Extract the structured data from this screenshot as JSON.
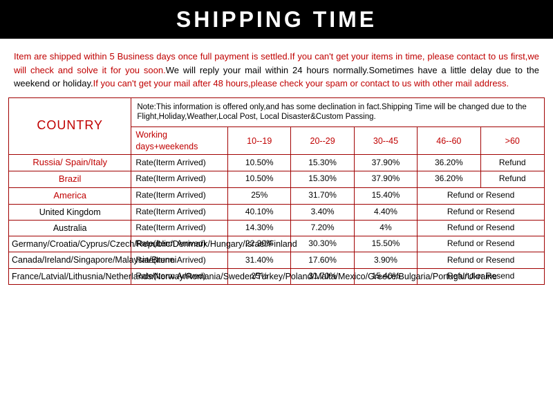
{
  "header": {
    "title": "SHIPPING  TIME"
  },
  "info": {
    "line1": "Item are shipped within 5 Business days once full payment is settled.If you can't get your items in time,",
    "line2": "please contact to us first,we will check and solve it for you soon.",
    "line3": "We will reply your mail within 24 hours normally.Sometimes have a little delay due to the weekend or holiday.",
    "line4": "If you can't get your mail after 48 hours,please check your spam or contact to us with other mail address."
  },
  "table": {
    "country_header": "COUNTRY",
    "note": "Note:This information is offered only,and has some declination in fact.Shipping Time will be changed due to the Flight,Holiday,Weather,Local Post, Local Disaster&Custom Passing.",
    "working_header": "Working days+weekends",
    "range_headers": [
      "10--19",
      "20--29",
      "30--45",
      "46--60",
      ">60"
    ],
    "rate_label": "Rate(Iterm Arrived)",
    "refund": "Refund",
    "refund_resend": "Refund or Resend",
    "col_widths": {
      "country": 165,
      "rate": 130,
      "range": 85,
      "last": 86
    },
    "rows": [
      {
        "country": "Russia/ Spain/Italy",
        "country_color": "red",
        "values": [
          "10.50%",
          "15.30%",
          "37.90%",
          "36.20%"
        ],
        "tail": "refund_single"
      },
      {
        "country": "Brazil",
        "country_color": "red",
        "values": [
          "10.50%",
          "15.30%",
          "37.90%",
          "36.20%"
        ],
        "tail": "refund_single"
      },
      {
        "country": "America",
        "country_color": "red",
        "values": [
          "25%",
          "31.70%",
          "15.40%"
        ],
        "tail": "refund_resend_span"
      },
      {
        "country": "United Kingdom",
        "country_color": "black",
        "values": [
          "40.10%",
          "3.40%",
          "4.40%"
        ],
        "tail": "refund_resend_span"
      },
      {
        "country": "Australia",
        "country_color": "black",
        "values": [
          "14.30%",
          "7.20%",
          "4%"
        ],
        "tail": "refund_resend_span"
      },
      {
        "country": "Germany/Croatia/Cyprus/Czech/Republic/Denmark/Hungary/Israel/Finland",
        "country_color": "black",
        "values": [
          "22.20%",
          "30.30%",
          "15.50%"
        ],
        "tail": "refund_resend_span"
      },
      {
        "country": "Canada/Ireland/Singapore/Malaysia/Brunei",
        "country_color": "black",
        "values": [
          "31.40%",
          "17.60%",
          "3.90%"
        ],
        "tail": "refund_resend_span"
      },
      {
        "country": "France/Latvial/Lithusnia/Netherlands/Norway/Romania/Sweden/Turkey/Poland/Malta/Mexico/Greece/Bulgaria/Portugal/Ukraine",
        "country_color": "black",
        "values": [
          "25%",
          "31.70%",
          "15.40%"
        ],
        "tail": "refund_resend_span"
      }
    ]
  },
  "colors": {
    "header_bg": "#000000",
    "header_text": "#ffffff",
    "accent_red": "#c00000",
    "border": "#a00000",
    "text": "#000000",
    "background": "#ffffff"
  }
}
